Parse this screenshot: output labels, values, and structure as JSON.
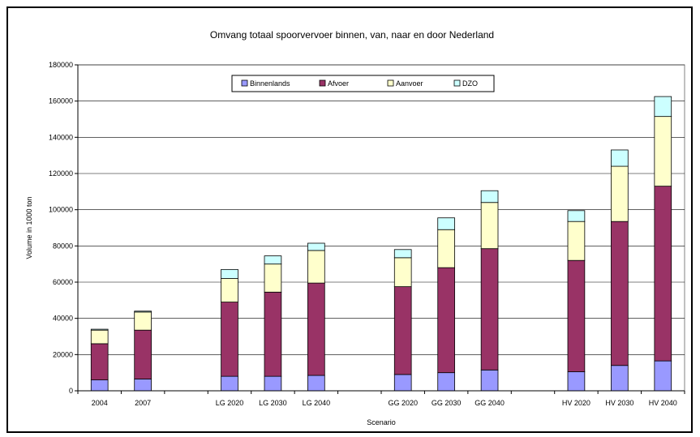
{
  "chart_data": {
    "type": "bar",
    "stacked": true,
    "title": "Omvang totaal spoorvervoer binnen, van, naar en door Nederland",
    "xlabel": "Scenario",
    "ylabel": "Volume in 1000 ton",
    "ylim": [
      0,
      180000
    ],
    "yticks": [
      0,
      20000,
      40000,
      60000,
      80000,
      100000,
      120000,
      140000,
      160000,
      180000
    ],
    "ytick_labels": [
      "0",
      "20000",
      "40000",
      "60000",
      "80000",
      "100000",
      "120000",
      "140000",
      "160000",
      "180000"
    ],
    "grid": true,
    "legend_position": "top-center",
    "categories": [
      "2004",
      "2007",
      "",
      "LG 2020",
      "LG 2030",
      "LG 2040",
      "",
      "GG 2020",
      "GG 2030",
      "GG 2040",
      "",
      "HV 2020",
      "HV 2030",
      "HV 2040"
    ],
    "series": [
      {
        "name": "Binnenlands",
        "color": "#9999ff",
        "values": [
          6000,
          6500,
          null,
          8000,
          8000,
          8500,
          null,
          9000,
          10000,
          11500,
          null,
          10500,
          14000,
          16500
        ]
      },
      {
        "name": "Afvoer",
        "color": "#993366",
        "values": [
          20000,
          27000,
          null,
          41000,
          46500,
          51000,
          null,
          48500,
          58000,
          67000,
          null,
          61500,
          79500,
          96500
        ]
      },
      {
        "name": "Aanvoer",
        "color": "#ffffcc",
        "values": [
          7500,
          10000,
          null,
          13000,
          15500,
          18000,
          null,
          16000,
          21000,
          25500,
          null,
          21500,
          30500,
          38500
        ]
      },
      {
        "name": "DZO",
        "color": "#ccffff",
        "values": [
          500,
          500,
          null,
          5000,
          4500,
          4000,
          null,
          4500,
          6500,
          6500,
          null,
          6000,
          9000,
          11000
        ]
      }
    ]
  }
}
